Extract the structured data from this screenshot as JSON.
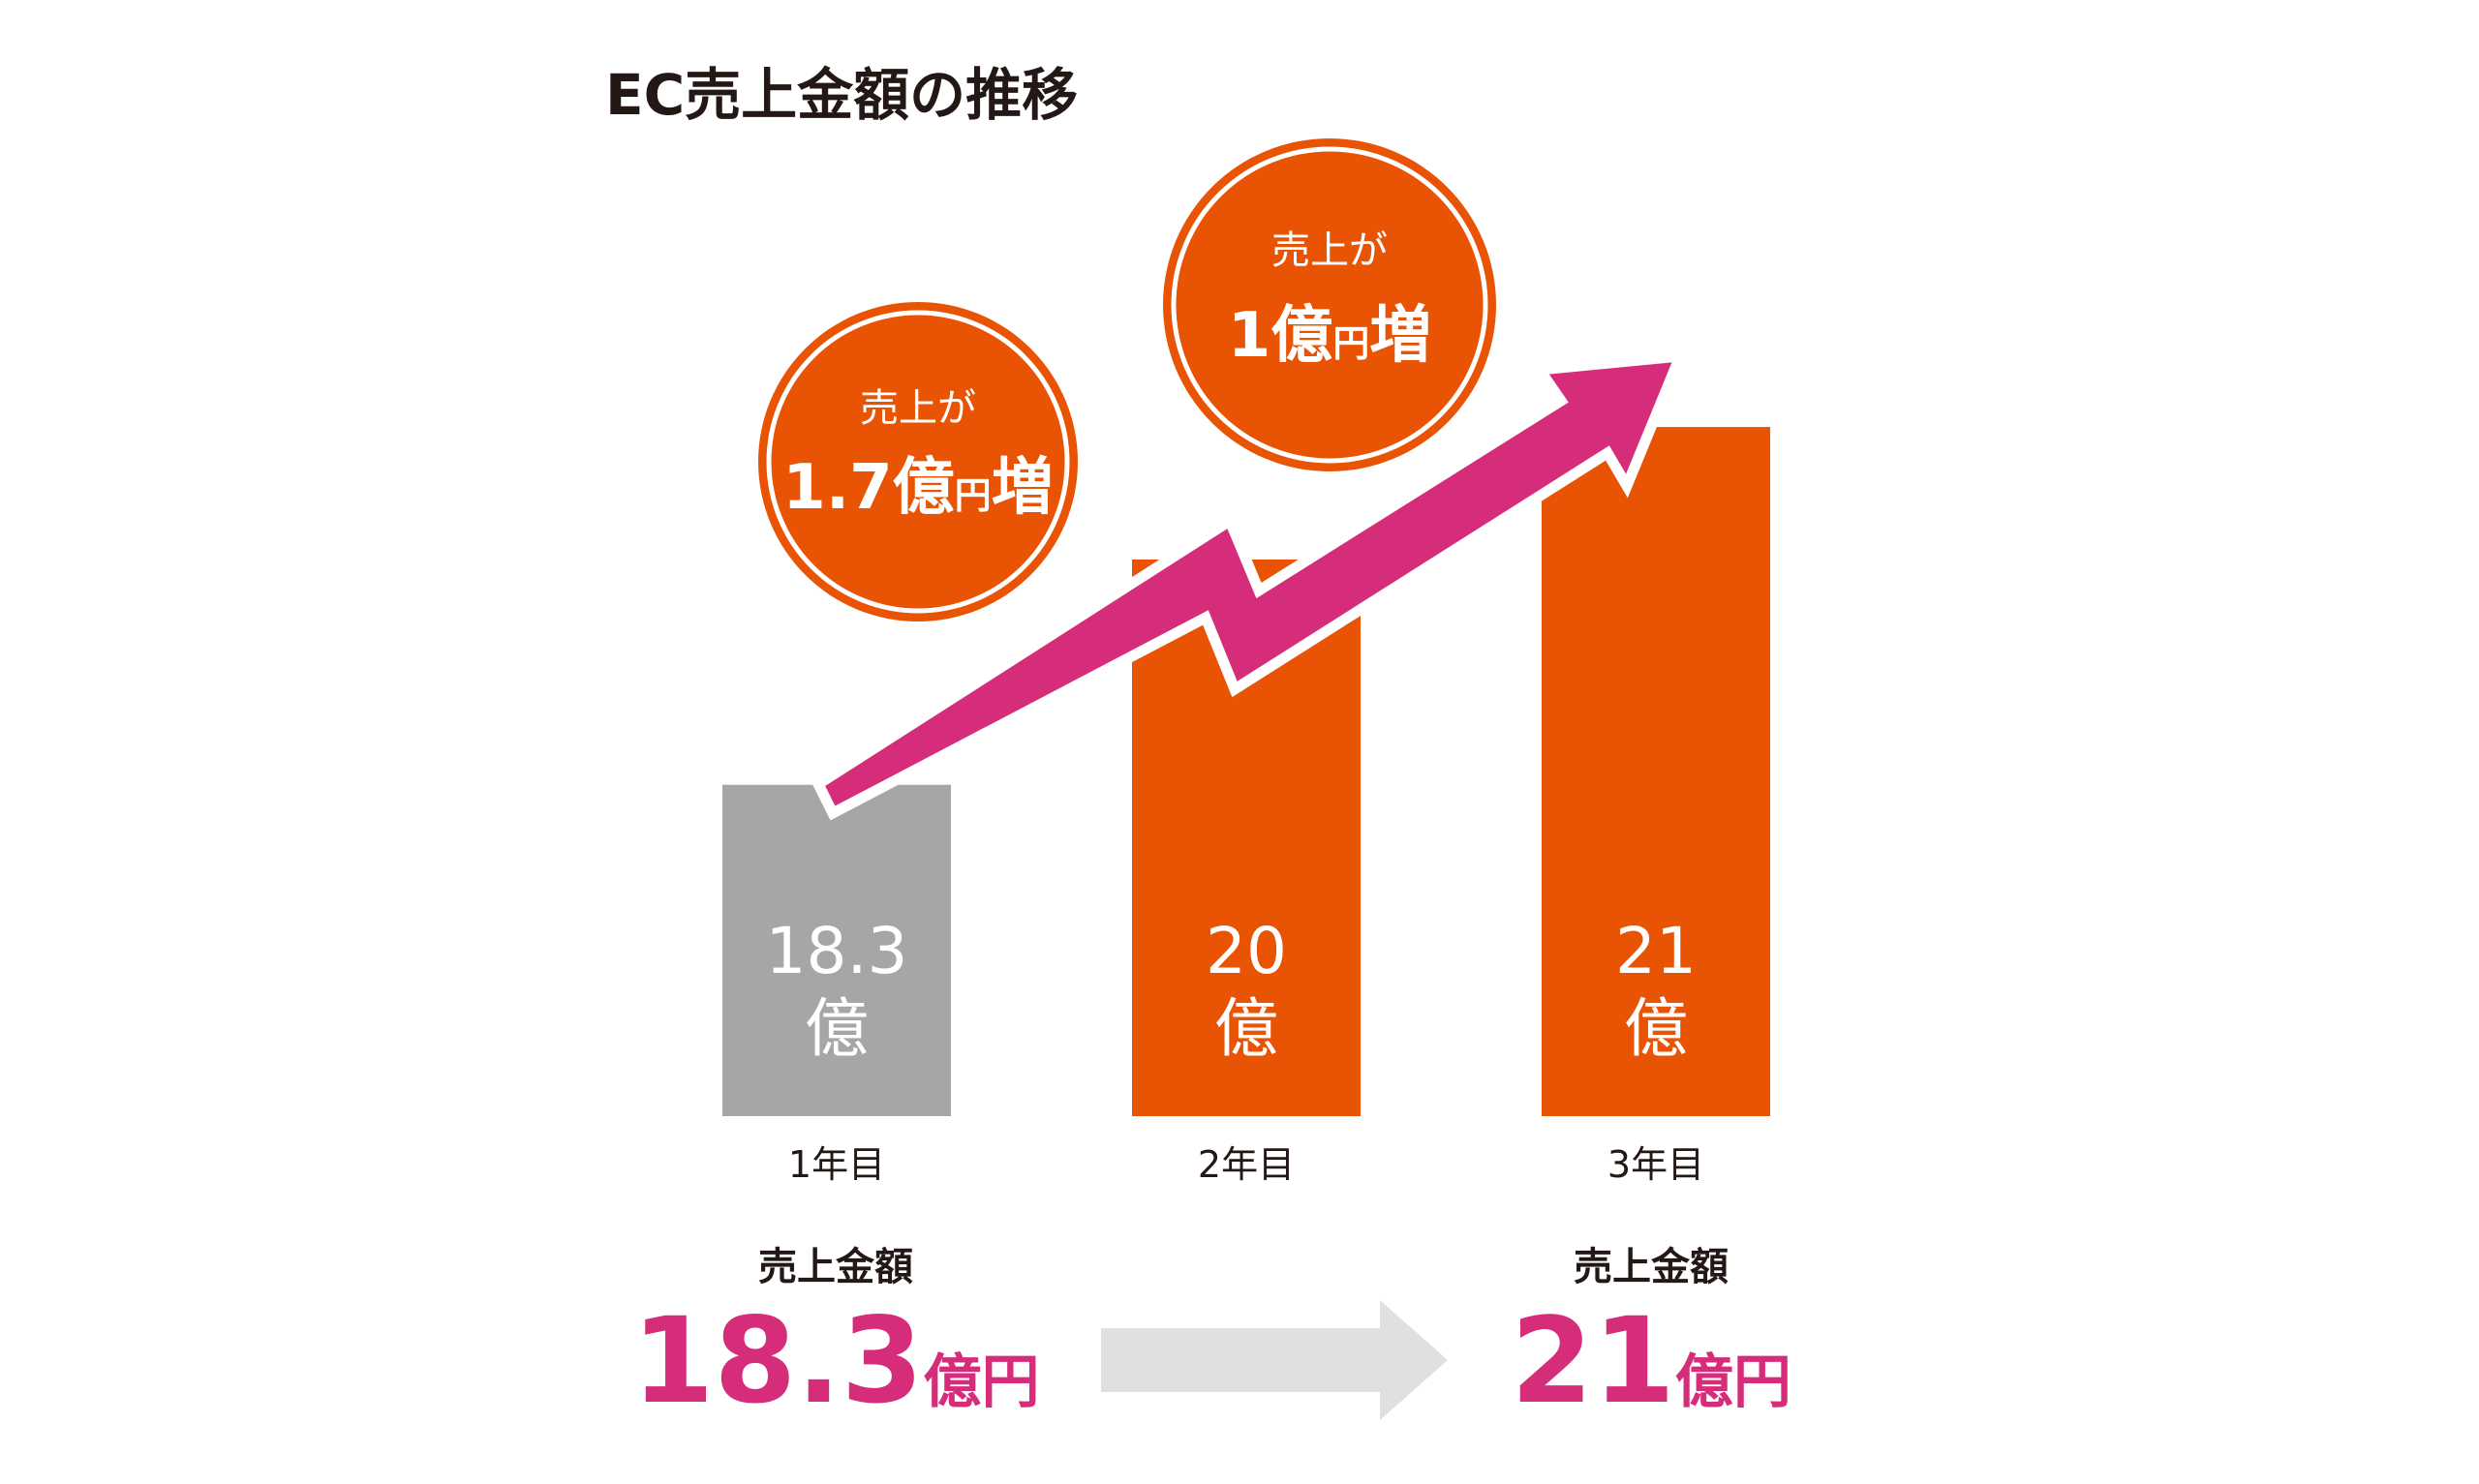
{
  "chart_data": {
    "type": "bar",
    "title": "EC売上金額の推移",
    "categories": [
      "1年目",
      "2年目",
      "3年目"
    ],
    "values": [
      18.3,
      20,
      21
    ],
    "value_labels": [
      {
        "number": "18.3",
        "unit": "億"
      },
      {
        "number": "20",
        "unit": "億"
      },
      {
        "number": "21",
        "unit": "億"
      }
    ],
    "bar_colors": [
      "#a6a6a6",
      "#e85304",
      "#e85304"
    ],
    "ylim": [
      15.8,
      21.3
    ],
    "xlabel": "",
    "ylabel": "",
    "grid": false,
    "annotations": [
      {
        "line1": "売上が",
        "number": "1.7",
        "unit_big": "億",
        "unit_small": "円",
        "suffix": "増"
      },
      {
        "line1": "売上が",
        "number": "1",
        "unit_big": "億",
        "unit_small": "円",
        "suffix": "増"
      }
    ]
  },
  "summary": {
    "before": {
      "label": "売上金額",
      "number": "18.3",
      "unit": "億円"
    },
    "after": {
      "label": "売上金額",
      "number": "21",
      "unit": "億円"
    }
  },
  "colors": {
    "accent_orange": "#e85304",
    "bar_gray": "#a6a6a6",
    "trend_arrow": "#d62d7a",
    "summary_arrow": "#e0e0e0",
    "text_dark": "#231815"
  }
}
